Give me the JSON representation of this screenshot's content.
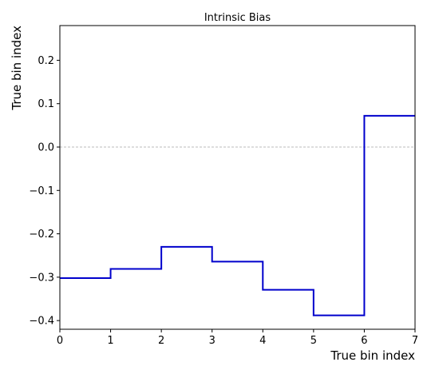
{
  "chart_data": {
    "type": "line",
    "style": "step",
    "title": "Intrinsic Bias",
    "xlabel": "True bin index",
    "ylabel": "True bin index",
    "xlim": [
      0,
      7
    ],
    "ylim": [
      -0.42,
      0.28
    ],
    "xticks": [
      0,
      1,
      2,
      3,
      4,
      5,
      6,
      7
    ],
    "yticks": [
      -0.4,
      -0.3,
      -0.2,
      -0.1,
      0.0,
      0.1,
      0.2
    ],
    "ytick_labels": [
      "−0.4",
      "−0.3",
      "−0.2",
      "−0.1",
      "0.0",
      "0.1",
      "0.2"
    ],
    "grid": false,
    "reference_line": {
      "y": 0.0,
      "style": "dashed",
      "color": "#bbbbbb"
    },
    "series": [
      {
        "color": "#0000cc",
        "bin_edges": [
          0,
          1,
          2,
          3,
          4,
          5,
          6,
          7
        ],
        "values": [
          -0.302,
          -0.281,
          -0.23,
          -0.264,
          -0.329,
          -0.388,
          0.072
        ]
      }
    ]
  }
}
